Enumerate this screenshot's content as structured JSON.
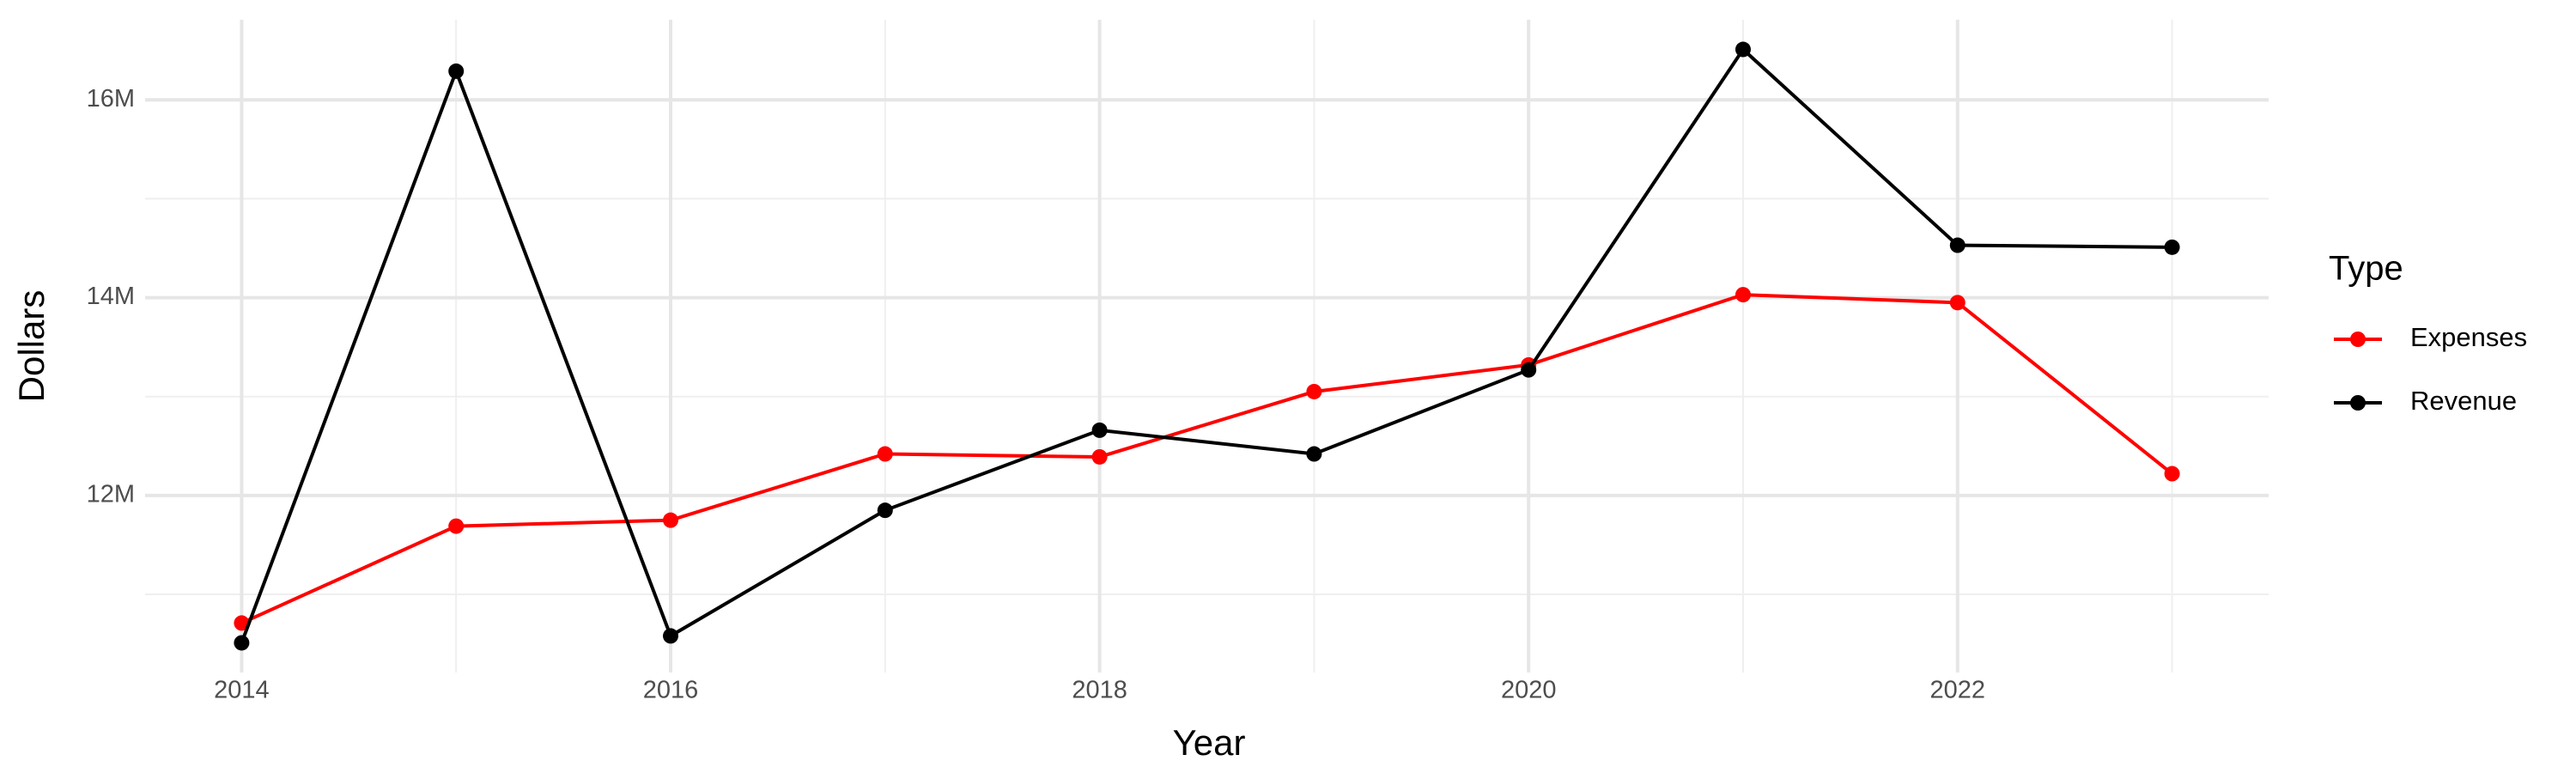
{
  "chart_data": {
    "type": "line",
    "x_label": "Year",
    "y_label": "Dollars",
    "x": [
      2014,
      2015,
      2016,
      2017,
      2018,
      2019,
      2020,
      2021,
      2022,
      2023
    ],
    "series": [
      {
        "name": "Expenses",
        "color": "#ff0000",
        "values": [
          10710000,
          11690000,
          11750000,
          12420000,
          12390000,
          13050000,
          13320000,
          14030000,
          13950000,
          12220000
        ]
      },
      {
        "name": "Revenue",
        "color": "#000000",
        "values": [
          10510000,
          16290000,
          10580000,
          11850000,
          12660000,
          12420000,
          13270000,
          16510000,
          14530000,
          14510000
        ]
      }
    ],
    "xlim": [
      2013.55,
      2023.45
    ],
    "xticks": [
      2014,
      2016,
      2018,
      2020,
      2022
    ],
    "ylim": [
      10210000,
      16810000
    ],
    "yticks": [
      {
        "value": 12000000,
        "label": "12M"
      },
      {
        "value": 14000000,
        "label": "14M"
      },
      {
        "value": 16000000,
        "label": "16M"
      }
    ],
    "grid": true,
    "legend_title": "Type",
    "legend": "right"
  }
}
